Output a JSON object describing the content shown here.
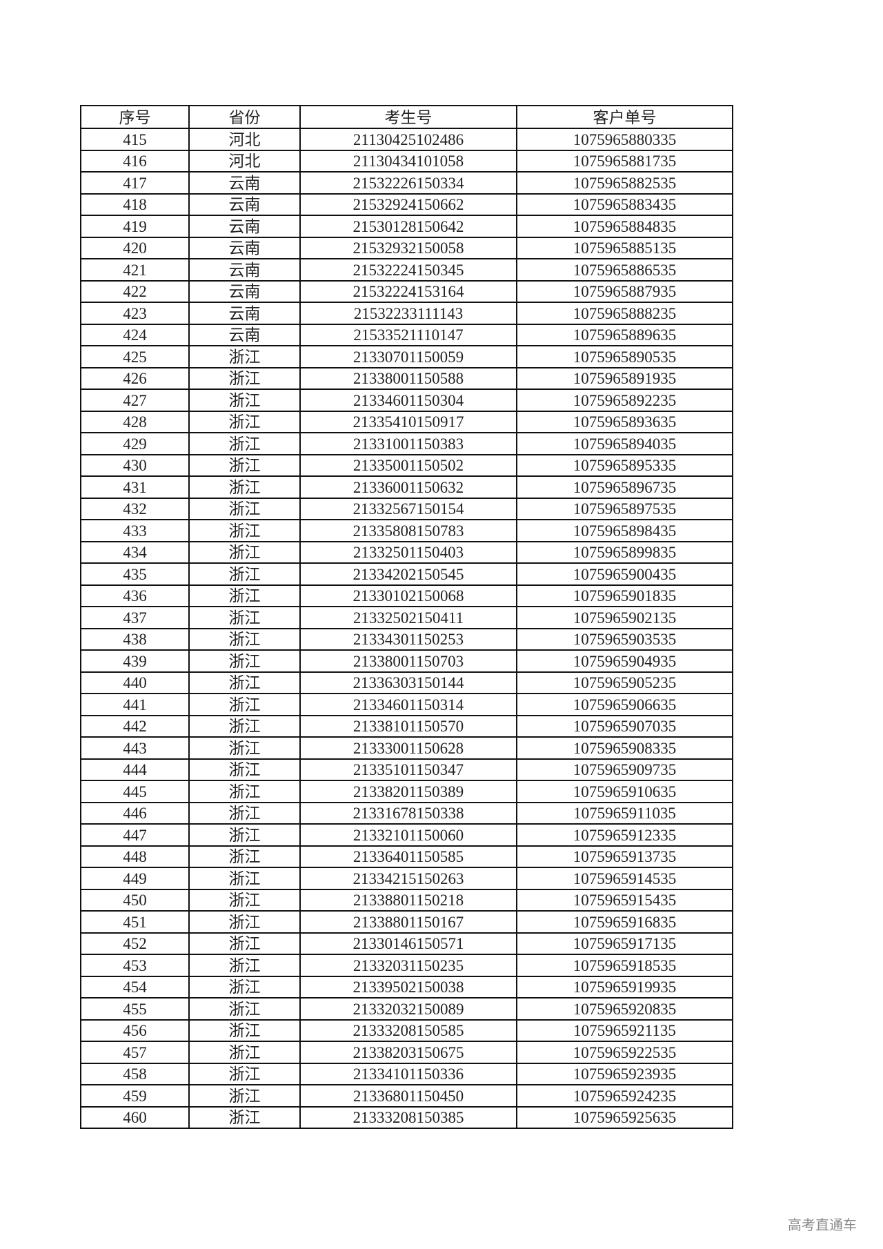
{
  "table": {
    "headers": [
      "序号",
      "省份",
      "考生号",
      "客户单号"
    ],
    "rows": [
      [
        "415",
        "河北",
        "21130425102486",
        "1075965880335"
      ],
      [
        "416",
        "河北",
        "21130434101058",
        "1075965881735"
      ],
      [
        "417",
        "云南",
        "21532226150334",
        "1075965882535"
      ],
      [
        "418",
        "云南",
        "21532924150662",
        "1075965883435"
      ],
      [
        "419",
        "云南",
        "21530128150642",
        "1075965884835"
      ],
      [
        "420",
        "云南",
        "21532932150058",
        "1075965885135"
      ],
      [
        "421",
        "云南",
        "21532224150345",
        "1075965886535"
      ],
      [
        "422",
        "云南",
        "21532224153164",
        "1075965887935"
      ],
      [
        "423",
        "云南",
        "21532233111143",
        "1075965888235"
      ],
      [
        "424",
        "云南",
        "21533521110147",
        "1075965889635"
      ],
      [
        "425",
        "浙江",
        "21330701150059",
        "1075965890535"
      ],
      [
        "426",
        "浙江",
        "21338001150588",
        "1075965891935"
      ],
      [
        "427",
        "浙江",
        "21334601150304",
        "1075965892235"
      ],
      [
        "428",
        "浙江",
        "21335410150917",
        "1075965893635"
      ],
      [
        "429",
        "浙江",
        "21331001150383",
        "1075965894035"
      ],
      [
        "430",
        "浙江",
        "21335001150502",
        "1075965895335"
      ],
      [
        "431",
        "浙江",
        "21336001150632",
        "1075965896735"
      ],
      [
        "432",
        "浙江",
        "21332567150154",
        "1075965897535"
      ],
      [
        "433",
        "浙江",
        "21335808150783",
        "1075965898435"
      ],
      [
        "434",
        "浙江",
        "21332501150403",
        "1075965899835"
      ],
      [
        "435",
        "浙江",
        "21334202150545",
        "1075965900435"
      ],
      [
        "436",
        "浙江",
        "21330102150068",
        "1075965901835"
      ],
      [
        "437",
        "浙江",
        "21332502150411",
        "1075965902135"
      ],
      [
        "438",
        "浙江",
        "21334301150253",
        "1075965903535"
      ],
      [
        "439",
        "浙江",
        "21338001150703",
        "1075965904935"
      ],
      [
        "440",
        "浙江",
        "21336303150144",
        "1075965905235"
      ],
      [
        "441",
        "浙江",
        "21334601150314",
        "1075965906635"
      ],
      [
        "442",
        "浙江",
        "21338101150570",
        "1075965907035"
      ],
      [
        "443",
        "浙江",
        "21333001150628",
        "1075965908335"
      ],
      [
        "444",
        "浙江",
        "21335101150347",
        "1075965909735"
      ],
      [
        "445",
        "浙江",
        "21338201150389",
        "1075965910635"
      ],
      [
        "446",
        "浙江",
        "21331678150338",
        "1075965911035"
      ],
      [
        "447",
        "浙江",
        "21332101150060",
        "1075965912335"
      ],
      [
        "448",
        "浙江",
        "21336401150585",
        "1075965913735"
      ],
      [
        "449",
        "浙江",
        "21334215150263",
        "1075965914535"
      ],
      [
        "450",
        "浙江",
        "21338801150218",
        "1075965915435"
      ],
      [
        "451",
        "浙江",
        "21338801150167",
        "1075965916835"
      ],
      [
        "452",
        "浙江",
        "21330146150571",
        "1075965917135"
      ],
      [
        "453",
        "浙江",
        "21332031150235",
        "1075965918535"
      ],
      [
        "454",
        "浙江",
        "21339502150038",
        "1075965919935"
      ],
      [
        "455",
        "浙江",
        "21332032150089",
        "1075965920835"
      ],
      [
        "456",
        "浙江",
        "21333208150585",
        "1075965921135"
      ],
      [
        "457",
        "浙江",
        "21338203150675",
        "1075965922535"
      ],
      [
        "458",
        "浙江",
        "21334101150336",
        "1075965923935"
      ],
      [
        "459",
        "浙江",
        "21336801150450",
        "1075965924235"
      ],
      [
        "460",
        "浙江",
        "21333208150385",
        "1075965925635"
      ]
    ]
  },
  "watermark": "高考直通车"
}
